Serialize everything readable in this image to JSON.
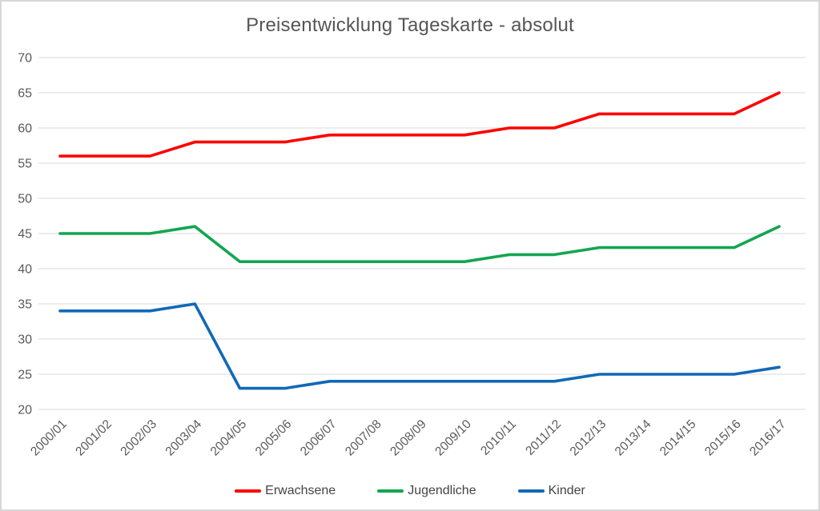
{
  "title": "Preisentwicklung Tageskarte - absolut",
  "chart_data": {
    "type": "line",
    "title": "Preisentwicklung Tageskarte - absolut",
    "categories": [
      "2000/01",
      "2001/02",
      "2002/03",
      "2003/04",
      "2004/05",
      "2005/06",
      "2006/07",
      "2007/08",
      "2008/09",
      "2009/10",
      "2010/11",
      "2011/12",
      "2012/13",
      "2013/14",
      "2014/15",
      "2015/16",
      "2016/17"
    ],
    "series": [
      {
        "name": "Erwachsene",
        "color": "#fe0000",
        "values": [
          56,
          56,
          56,
          58,
          58,
          58,
          59,
          59,
          59,
          59,
          60,
          60,
          62,
          62,
          62,
          62,
          65
        ]
      },
      {
        "name": "Jugendliche",
        "color": "#12a64f",
        "values": [
          45,
          45,
          45,
          46,
          41,
          41,
          41,
          41,
          41,
          41,
          42,
          42,
          43,
          43,
          43,
          43,
          46
        ]
      },
      {
        "name": "Kinder",
        "color": "#1169b6",
        "values": [
          34,
          34,
          34,
          35,
          23,
          23,
          24,
          24,
          24,
          24,
          24,
          24,
          25,
          25,
          25,
          25,
          26
        ]
      }
    ],
    "xlabel": "",
    "ylabel": "",
    "ylim": [
      20,
      70
    ],
    "ytick_step": 5,
    "grid": "horizontal-only",
    "legend_position": "bottom"
  },
  "colors": {
    "grid": "#d9d9d9",
    "tick_label": "#595959",
    "title": "#555555",
    "legend_label": "#444444",
    "border": "#d7d7d7",
    "background": "#ffffff"
  }
}
